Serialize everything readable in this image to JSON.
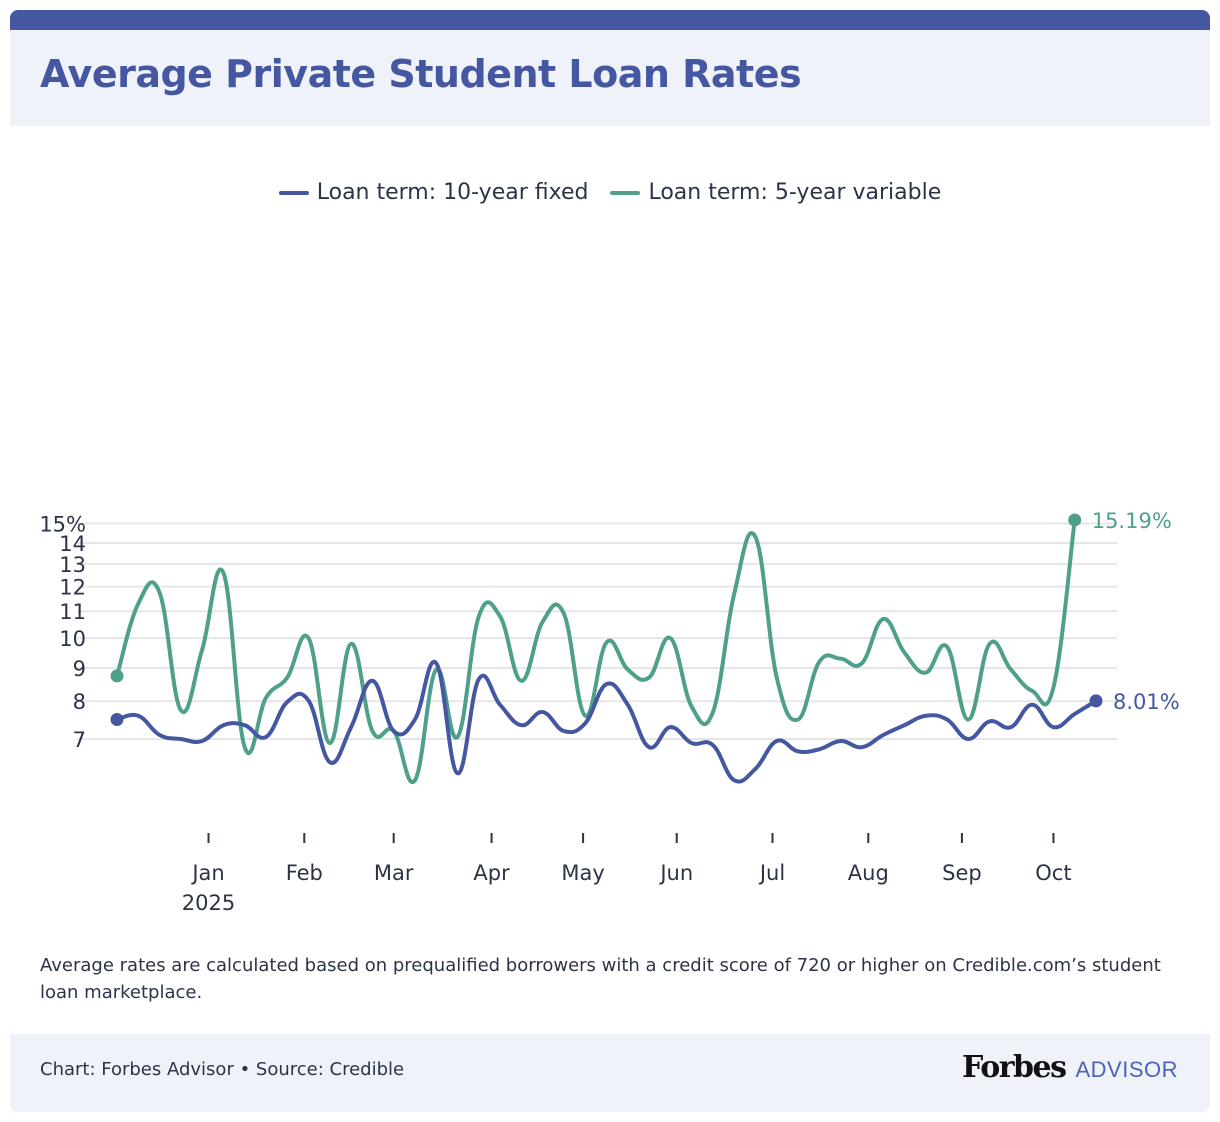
{
  "header": {
    "title": "Average Private Student Loan Rates"
  },
  "colors": {
    "brand": "#4457a0",
    "fixed": "#4457a0",
    "variable": "#4ea08a",
    "grid": "#e6e6e6",
    "text": "#2b3447"
  },
  "chart_data": {
    "type": "line",
    "title": "Average Private Student Loan Rates",
    "xlabel": "",
    "ylabel": "",
    "y_scale": "log",
    "ylim": [
      6.0,
      15.2
    ],
    "y_ticks": [
      7,
      8,
      9,
      10,
      11,
      12,
      13,
      14,
      15
    ],
    "y_tick_labels": [
      "7",
      "8",
      "9",
      "10",
      "11",
      "12",
      "13",
      "14",
      "15%"
    ],
    "grid": true,
    "legend_position": "top-center",
    "x_tick_labels": [
      {
        "label": "Jan",
        "sublabel": "2025",
        "index": 4.3
      },
      {
        "label": "Feb",
        "sublabel": "",
        "index": 8.8
      },
      {
        "label": "Mar",
        "sublabel": "",
        "index": 13.0
      },
      {
        "label": "Apr",
        "sublabel": "",
        "index": 17.6
      },
      {
        "label": "May",
        "sublabel": "",
        "index": 21.9
      },
      {
        "label": "Jun",
        "sublabel": "",
        "index": 26.3
      },
      {
        "label": "Jul",
        "sublabel": "",
        "index": 30.8
      },
      {
        "label": "Aug",
        "sublabel": "",
        "index": 35.3
      },
      {
        "label": "Sep",
        "sublabel": "",
        "index": 39.7
      },
      {
        "label": "Oct",
        "sublabel": "",
        "index": 44.0
      }
    ],
    "series": [
      {
        "name": "Loan term: 10-year fixed",
        "key": "fixed",
        "end_label": "8.01%",
        "values": [
          7.5,
          7.6,
          7.1,
          7.0,
          6.95,
          7.35,
          7.35,
          7.05,
          7.98,
          8.02,
          6.45,
          7.3,
          8.6,
          7.2,
          7.5,
          9.15,
          6.2,
          8.65,
          7.9,
          7.35,
          7.7,
          7.2,
          7.4,
          8.5,
          7.9,
          6.8,
          7.3,
          6.9,
          6.85,
          6.05,
          6.3,
          6.95,
          6.7,
          6.75,
          6.95,
          6.8,
          7.1,
          7.35,
          7.6,
          7.5,
          7.0,
          7.45,
          7.3,
          7.9,
          7.3,
          7.65,
          8.01
        ]
      },
      {
        "name": "Loan term: 5-year variable",
        "key": "variable",
        "end_label": "15.19%",
        "values": [
          8.75,
          11.3,
          11.75,
          7.75,
          9.6,
          12.6,
          6.8,
          8.1,
          8.7,
          10.0,
          6.9,
          9.8,
          7.2,
          7.2,
          6.05,
          8.95,
          7.05,
          10.8,
          10.8,
          8.6,
          10.6,
          10.9,
          7.6,
          9.85,
          8.95,
          8.7,
          10.0,
          7.85,
          7.7,
          11.7,
          14.3,
          8.7,
          7.5,
          9.2,
          9.3,
          9.15,
          10.7,
          9.5,
          8.85,
          9.7,
          7.5,
          9.8,
          8.95,
          8.3,
          8.4,
          15.19
        ]
      }
    ]
  },
  "note": "Average rates are calculated based on prequalified borrowers with a credit score of 720 or higher on Credible.com’s student loan marketplace.",
  "footer": {
    "credit": "Chart: Forbes Advisor • Source: Credible",
    "brand_main": "Forbes",
    "brand_sub": "ADVISOR"
  }
}
